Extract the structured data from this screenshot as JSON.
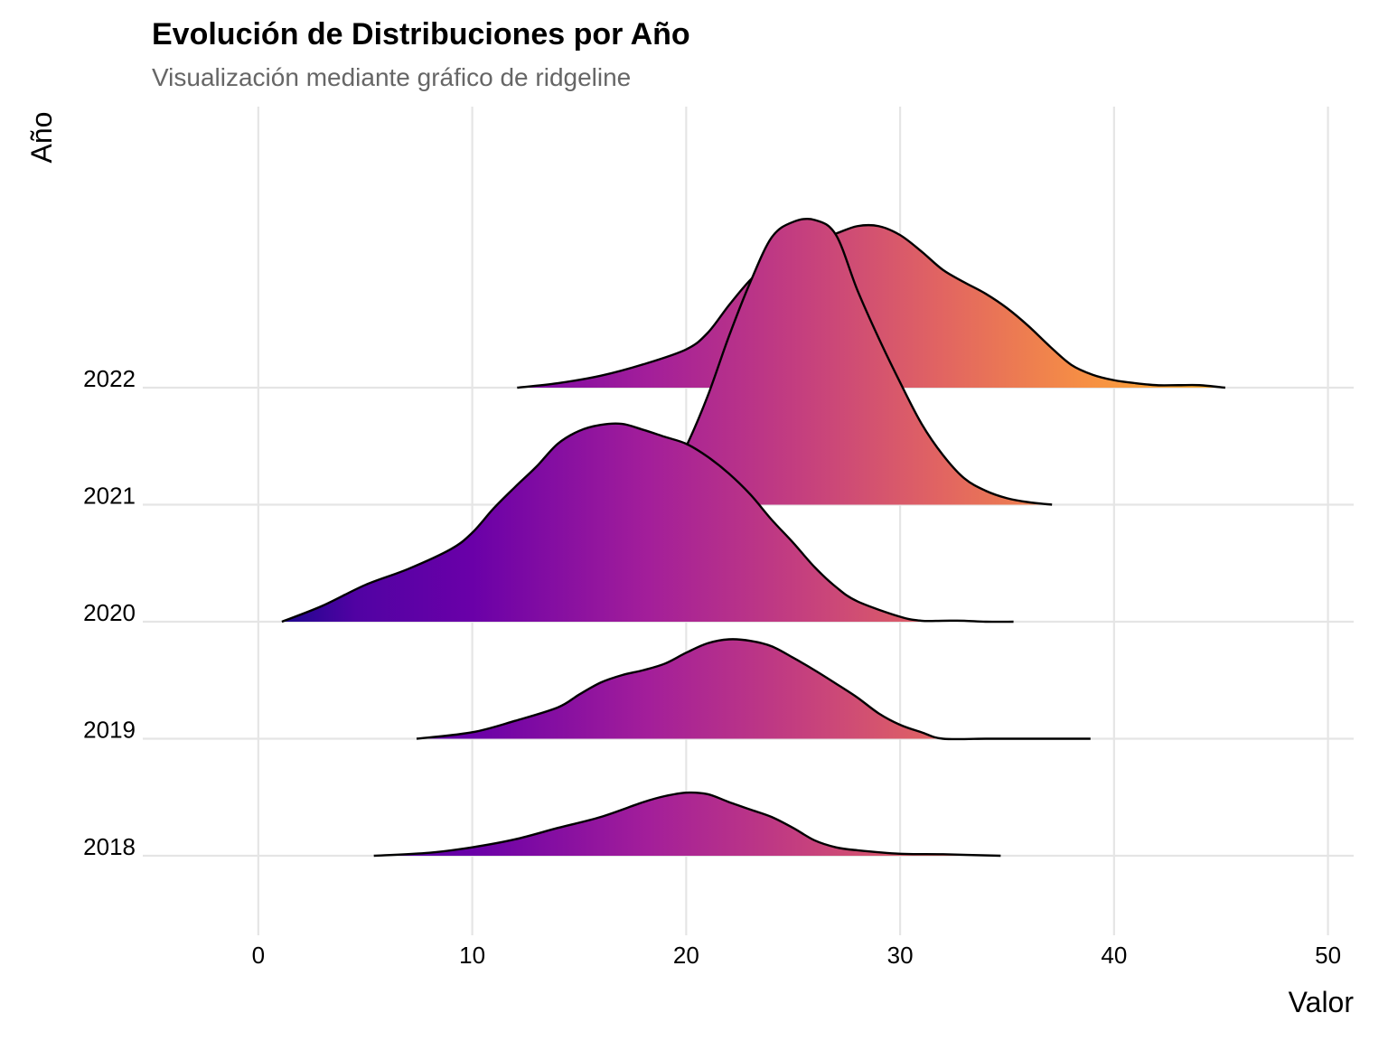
{
  "chart_data": {
    "type": "ridgeline",
    "title": "Evolución de Distribuciones por Año",
    "subtitle": "Visualización mediante gráfico de ridgeline",
    "xlabel": "Valor",
    "ylabel": "Año",
    "xlim": [
      -5.4,
      51.2
    ],
    "x_ticks": [
      0,
      10,
      20,
      30,
      40,
      50
    ],
    "y_categories": [
      "2018",
      "2019",
      "2020",
      "2021",
      "2022"
    ],
    "grid": true,
    "colormap": "plasma",
    "color_stops": [
      "#0d0887",
      "#6a00a8",
      "#b12a90",
      "#e16462",
      "#fca636",
      "#f0f921"
    ],
    "series": [
      {
        "name": "2018",
        "x_range": [
          5.4,
          34.7
        ],
        "density": [
          [
            5.4,
            0.0
          ],
          [
            8,
            0.06
          ],
          [
            10,
            0.17
          ],
          [
            12,
            0.33
          ],
          [
            14,
            0.56
          ],
          [
            16,
            0.78
          ],
          [
            18,
            1.08
          ],
          [
            19,
            1.2
          ],
          [
            20,
            1.27
          ],
          [
            21,
            1.24
          ],
          [
            22,
            1.08
          ],
          [
            23,
            0.93
          ],
          [
            24,
            0.78
          ],
          [
            25,
            0.56
          ],
          [
            26,
            0.31
          ],
          [
            27,
            0.17
          ],
          [
            28,
            0.11
          ],
          [
            30,
            0.04
          ],
          [
            32,
            0.03
          ],
          [
            34.7,
            0.0
          ]
        ]
      },
      {
        "name": "2019",
        "x_range": [
          7.4,
          38.9
        ],
        "density": [
          [
            7.4,
            0.0
          ],
          [
            10,
            0.13
          ],
          [
            12,
            0.36
          ],
          [
            14,
            0.63
          ],
          [
            15,
            0.89
          ],
          [
            16,
            1.13
          ],
          [
            17,
            1.28
          ],
          [
            18,
            1.38
          ],
          [
            19,
            1.51
          ],
          [
            20,
            1.73
          ],
          [
            21,
            1.92
          ],
          [
            22,
            2.0
          ],
          [
            23,
            1.97
          ],
          [
            24,
            1.86
          ],
          [
            25,
            1.63
          ],
          [
            26,
            1.38
          ],
          [
            27,
            1.11
          ],
          [
            28,
            0.83
          ],
          [
            29,
            0.51
          ],
          [
            30,
            0.28
          ],
          [
            31,
            0.13
          ],
          [
            32,
            0.0
          ],
          [
            34,
            0.0
          ],
          [
            35,
            0.0
          ],
          [
            37,
            0.0
          ],
          [
            38.9,
            0.0
          ]
        ]
      },
      {
        "name": "2020",
        "x_range": [
          1.1,
          35.3
        ],
        "density": [
          [
            1.1,
            0.0
          ],
          [
            3,
            0.32
          ],
          [
            5,
            0.74
          ],
          [
            7,
            1.06
          ],
          [
            9,
            1.46
          ],
          [
            10,
            1.79
          ],
          [
            11,
            2.28
          ],
          [
            12,
            2.71
          ],
          [
            13,
            3.12
          ],
          [
            14,
            3.58
          ],
          [
            15,
            3.84
          ],
          [
            16,
            3.96
          ],
          [
            17,
            3.98
          ],
          [
            18,
            3.86
          ],
          [
            19,
            3.72
          ],
          [
            20,
            3.58
          ],
          [
            21,
            3.32
          ],
          [
            22,
            2.98
          ],
          [
            23,
            2.56
          ],
          [
            24,
            2.05
          ],
          [
            25,
            1.59
          ],
          [
            26,
            1.1
          ],
          [
            27,
            0.7
          ],
          [
            28,
            0.41
          ],
          [
            30,
            0.1
          ],
          [
            31,
            0.02
          ],
          [
            32,
            0.02
          ],
          [
            33,
            0.02
          ],
          [
            34,
            0.0
          ],
          [
            35.3,
            0.0
          ]
        ]
      },
      {
        "name": "2021",
        "x_range": [
          18.6,
          37.1
        ],
        "density": [
          [
            18.6,
            0.0
          ],
          [
            19,
            0.36
          ],
          [
            20,
            1.17
          ],
          [
            21,
            2.18
          ],
          [
            22,
            3.39
          ],
          [
            23,
            4.48
          ],
          [
            24,
            5.38
          ],
          [
            25,
            5.69
          ],
          [
            26,
            5.73
          ],
          [
            27,
            5.43
          ],
          [
            28,
            4.32
          ],
          [
            29,
            3.35
          ],
          [
            30,
            2.46
          ],
          [
            31,
            1.63
          ],
          [
            32,
            1.0
          ],
          [
            33,
            0.53
          ],
          [
            34,
            0.28
          ],
          [
            35,
            0.13
          ],
          [
            36,
            0.05
          ],
          [
            37.1,
            0.0
          ]
        ]
      },
      {
        "name": "2022",
        "x_range": [
          12.1,
          45.2
        ],
        "density": [
          [
            12.1,
            0.0
          ],
          [
            14,
            0.09
          ],
          [
            16,
            0.24
          ],
          [
            18,
            0.47
          ],
          [
            20,
            0.77
          ],
          [
            21,
            1.1
          ],
          [
            22,
            1.66
          ],
          [
            23,
            2.17
          ],
          [
            24,
            2.55
          ],
          [
            25,
            2.8
          ],
          [
            26,
            2.96
          ],
          [
            27,
            3.1
          ],
          [
            28,
            3.25
          ],
          [
            29,
            3.25
          ],
          [
            30,
            3.07
          ],
          [
            31,
            2.74
          ],
          [
            32,
            2.37
          ],
          [
            33,
            2.12
          ],
          [
            34,
            1.89
          ],
          [
            35,
            1.6
          ],
          [
            36,
            1.24
          ],
          [
            37,
            0.83
          ],
          [
            38,
            0.46
          ],
          [
            39,
            0.26
          ],
          [
            40,
            0.15
          ],
          [
            41,
            0.09
          ],
          [
            42,
            0.05
          ],
          [
            43,
            0.05
          ],
          [
            44,
            0.05
          ],
          [
            45.2,
            0.0
          ]
        ]
      }
    ]
  }
}
